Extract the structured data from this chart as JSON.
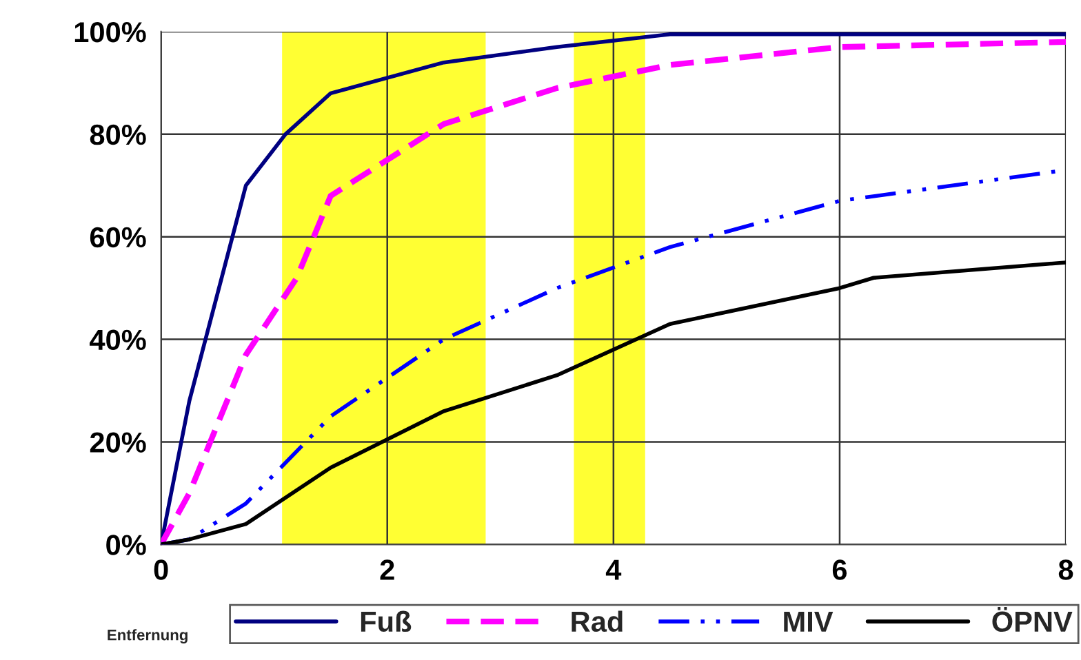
{
  "chart_data": {
    "type": "line",
    "xlabel": "Entfernung",
    "series": [
      {
        "name": "Fuß",
        "color": "#000080",
        "line_style": "solid",
        "x": [
          0,
          0.25,
          0.75,
          1.1,
          1.5,
          2.5,
          3.5,
          4.5,
          8
        ],
        "values": [
          0,
          28,
          70,
          80,
          88,
          94,
          97,
          99.5,
          99.5
        ]
      },
      {
        "name": "Rad",
        "color": "#ff00ff",
        "line_style": "dashed",
        "x": [
          0,
          0.25,
          0.75,
          1.2,
          1.5,
          2.5,
          3.5,
          4.5,
          6,
          8
        ],
        "values": [
          0,
          10,
          37,
          52,
          68,
          82,
          89,
          93.5,
          97,
          98
        ]
      },
      {
        "name": "MIV",
        "color": "#0000ff",
        "line_style": "dotted",
        "x": [
          0,
          0.25,
          0.75,
          1.5,
          2.5,
          3.5,
          4.5,
          6,
          8
        ],
        "values": [
          0,
          1,
          8,
          25,
          40,
          50,
          58,
          67,
          73
        ]
      },
      {
        "name": "ÖPNV",
        "color": "#000000",
        "line_style": "solid",
        "x": [
          0,
          0.25,
          0.75,
          1.5,
          2.5,
          3.5,
          4.5,
          6,
          6.3,
          8
        ],
        "values": [
          0,
          1,
          4,
          15,
          26,
          33,
          43,
          50,
          52,
          55
        ]
      }
    ],
    "bands": [
      {
        "axis": "x",
        "from": 1.07,
        "to": 2.87,
        "color": "#ffff33"
      },
      {
        "axis": "x",
        "from": 3.65,
        "to": 4.28,
        "color": "#ffff33"
      }
    ],
    "xlim": [
      0,
      8
    ],
    "xticks": [
      0,
      2,
      4,
      6,
      8
    ],
    "ylim": [
      0,
      100
    ],
    "yticks": [
      {
        "value": 0,
        "label": "0%"
      },
      {
        "value": 20,
        "label": "20%"
      },
      {
        "value": 40,
        "label": "40%"
      },
      {
        "value": 60,
        "label": "60%"
      },
      {
        "value": 80,
        "label": "80%"
      },
      {
        "value": 100,
        "label": "100%"
      }
    ],
    "grid": true,
    "legend": "bottom"
  }
}
